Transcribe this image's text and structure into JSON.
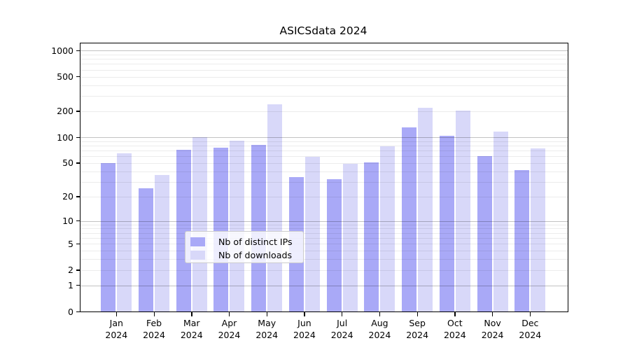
{
  "chart_data": {
    "type": "bar",
    "title": "ASICSdata 2024",
    "categories": [
      "Jan",
      "Feb",
      "Mar",
      "Apr",
      "May",
      "Jun",
      "Jul",
      "Aug",
      "Sep",
      "Oct",
      "Nov",
      "Dec"
    ],
    "year_label": "2024",
    "series": [
      {
        "name": "Nb of distinct IPs",
        "color": "#a9a9f7",
        "values": [
          50,
          25,
          71,
          76,
          81,
          34,
          32,
          51,
          130,
          103,
          60,
          41
        ]
      },
      {
        "name": "Nb of downloads",
        "color": "#d8d8f9",
        "values": [
          65,
          36,
          100,
          91,
          240,
          59,
          49,
          79,
          220,
          205,
          117,
          74
        ]
      }
    ],
    "y_axis": {
      "scale": "log1p",
      "ticks": [
        0,
        1,
        2,
        5,
        10,
        20,
        50,
        100,
        200,
        500,
        1000
      ],
      "ylim": [
        0,
        1200
      ]
    },
    "grid": {
      "enabled": true,
      "major_lines": [
        1,
        10,
        100,
        1000
      ],
      "minor_lines": [
        2,
        3,
        4,
        5,
        6,
        7,
        8,
        9,
        20,
        30,
        40,
        50,
        60,
        70,
        80,
        90,
        200,
        300,
        400,
        500,
        600,
        700,
        800,
        900
      ]
    },
    "legend": {
      "position": "lower-center-inside"
    }
  }
}
